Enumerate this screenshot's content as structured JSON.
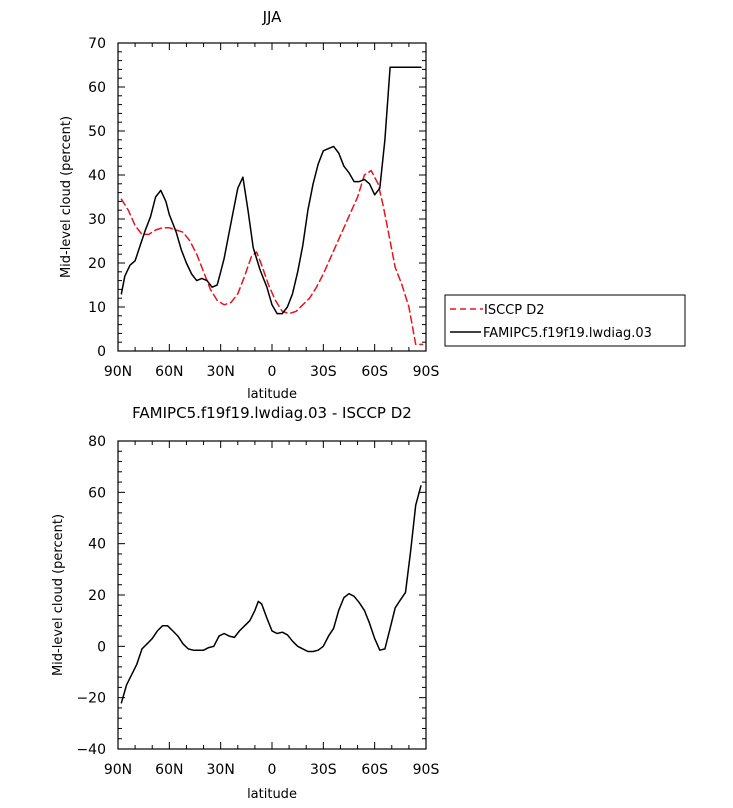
{
  "chart_data": [
    {
      "type": "line",
      "title": "JJA",
      "xlabel": "latitude",
      "ylabel": "Mid-level cloud (percent)",
      "xlim": [
        90,
        -90
      ],
      "ylim": [
        0,
        70
      ],
      "xticks": [
        90,
        60,
        30,
        0,
        -30,
        -60,
        -90
      ],
      "xtick_labels": [
        "90N",
        "60N",
        "30N",
        "0",
        "30S",
        "60S",
        "90S"
      ],
      "yticks": [
        0,
        10,
        20,
        30,
        40,
        50,
        60,
        70
      ],
      "ytick_labels": [
        "0",
        "10",
        "20",
        "30",
        "40",
        "50",
        "60",
        "70"
      ],
      "legend": {
        "placement": "right",
        "entries": [
          "ISCCP D2",
          "FAMIPC5.f19f19.lwdiag.03"
        ]
      },
      "series": [
        {
          "name": "ISCCP D2",
          "color": "#e8141c",
          "style": "dashed",
          "x": [
            88,
            84,
            80,
            76,
            72,
            68,
            64,
            60,
            56,
            52,
            48,
            44,
            40,
            36,
            32,
            28,
            24,
            20,
            16,
            12,
            9,
            6,
            2,
            -2,
            -6,
            -10,
            -14,
            -18,
            -22,
            -26,
            -30,
            -34,
            -38,
            -42,
            -46,
            -50,
            -54,
            -58,
            -62,
            -65,
            -68,
            -72,
            -76,
            -80,
            -84,
            -88
          ],
          "values": [
            34.5,
            32,
            28.5,
            26.5,
            26.5,
            27.5,
            28,
            28,
            27.5,
            27,
            25,
            22,
            18,
            14,
            11.5,
            10.5,
            11,
            13,
            17,
            21.5,
            22.5,
            19.5,
            15,
            11.5,
            9,
            8.5,
            9,
            10.5,
            12,
            14.5,
            17.5,
            21,
            24.5,
            28,
            31.5,
            35,
            40,
            41,
            38,
            33,
            27,
            19,
            15,
            10,
            1.5,
            1.5
          ]
        },
        {
          "name": "FAMIPC5.f19f19.lwdiag.03",
          "color": "#000000",
          "style": "solid",
          "x": [
            88,
            86,
            83,
            80,
            77,
            74,
            71,
            68,
            65,
            62,
            60,
            58,
            56,
            53,
            50,
            47,
            44,
            41,
            38,
            35,
            32,
            30,
            28,
            26,
            23,
            20,
            17,
            14,
            11,
            9,
            7,
            5,
            3,
            0,
            -3,
            -6,
            -9,
            -12,
            -15,
            -18,
            -21,
            -24,
            -27,
            -30,
            -33,
            -36,
            -39,
            -42,
            -45,
            -48,
            -51,
            -54,
            -57,
            -60,
            -63,
            -66,
            -69,
            -72,
            -75,
            -78,
            -81,
            -84,
            -87
          ],
          "values": [
            13,
            17,
            19.5,
            20.5,
            24,
            27.5,
            30.5,
            35,
            36.5,
            34,
            31,
            29,
            27,
            23,
            20,
            17.5,
            16,
            16.5,
            16,
            14.5,
            15,
            18,
            21,
            25,
            31,
            37,
            39.5,
            32,
            23.5,
            21,
            18.5,
            16.5,
            14.5,
            10.5,
            8.5,
            8.5,
            10,
            13,
            18,
            24,
            32,
            38,
            42.5,
            45.5,
            46,
            46.5,
            45,
            42,
            40.5,
            38.5,
            38.5,
            39,
            38,
            35.5,
            37,
            48,
            64.5,
            64.5,
            64.5,
            64.5,
            64.5,
            64.5,
            64.5
          ]
        }
      ]
    },
    {
      "type": "line",
      "title": "FAMIPC5.f19f19.lwdiag.03 - ISCCP D2",
      "xlabel": "latitude",
      "ylabel": "Mid-level cloud (percent)",
      "xlim": [
        90,
        -90
      ],
      "ylim": [
        -40,
        80
      ],
      "xticks": [
        90,
        60,
        30,
        0,
        -30,
        -60,
        -90
      ],
      "xtick_labels": [
        "90N",
        "60N",
        "30N",
        "0",
        "30S",
        "60S",
        "90S"
      ],
      "yticks": [
        -40,
        -20,
        0,
        20,
        40,
        60,
        80
      ],
      "ytick_labels": [
        "−40",
        "−20",
        "0",
        "20",
        "40",
        "60",
        "80"
      ],
      "series": [
        {
          "name": "FAMIPC5.f19f19.lwdiag.03 - ISCCP D2",
          "color": "#000000",
          "style": "solid",
          "x": [
            88,
            85,
            82,
            79,
            76,
            73,
            70,
            67,
            64,
            61,
            58,
            55,
            52,
            49,
            46,
            43,
            40,
            37,
            34,
            31,
            28,
            25,
            22,
            19,
            16,
            13,
            10,
            8,
            6,
            3,
            0,
            -3,
            -6,
            -9,
            -12,
            -15,
            -18,
            -21,
            -24,
            -27,
            -30,
            -33,
            -36,
            -39,
            -42,
            -45,
            -48,
            -51,
            -54,
            -57,
            -60,
            -63,
            -66,
            -69,
            -72,
            -75,
            -78,
            -81,
            -84,
            -87
          ],
          "values": [
            -22,
            -15,
            -11,
            -7,
            -1,
            1,
            3,
            6,
            8,
            8,
            6,
            4,
            1,
            -1,
            -1.5,
            -1.5,
            -1.5,
            -0.5,
            0,
            4,
            5,
            4,
            3.5,
            6,
            8,
            10,
            14,
            17.5,
            16.5,
            11,
            6,
            5,
            5.5,
            4.5,
            2,
            0,
            -1,
            -2,
            -2,
            -1.5,
            0,
            4,
            7,
            14,
            19,
            20.5,
            19.5,
            17,
            14,
            9,
            3,
            -1.5,
            -1,
            7,
            15,
            18,
            21,
            37,
            55,
            62.5
          ]
        }
      ]
    }
  ]
}
